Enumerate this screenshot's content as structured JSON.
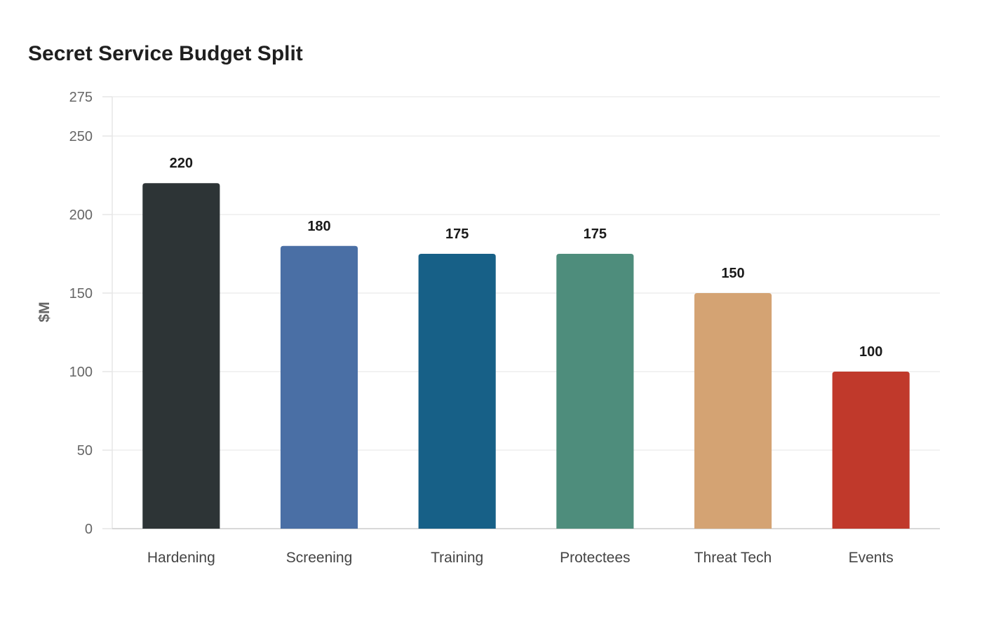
{
  "chart_data": {
    "type": "bar",
    "title": "Secret Service Budget Split",
    "xlabel": "",
    "ylabel": "$M",
    "categories": [
      "Hardening",
      "Screening",
      "Training",
      "Protectees",
      "Threat Tech",
      "Events"
    ],
    "values": [
      220,
      180,
      175,
      175,
      150,
      100
    ],
    "colors": [
      "#2d3436",
      "#4a6fa5",
      "#176087",
      "#4e8d7c",
      "#d4a373",
      "#c0392b"
    ],
    "ylim": [
      0,
      275
    ],
    "yticks": [
      0,
      50,
      100,
      150,
      200,
      250,
      275
    ],
    "grid": true,
    "legend": "none"
  }
}
